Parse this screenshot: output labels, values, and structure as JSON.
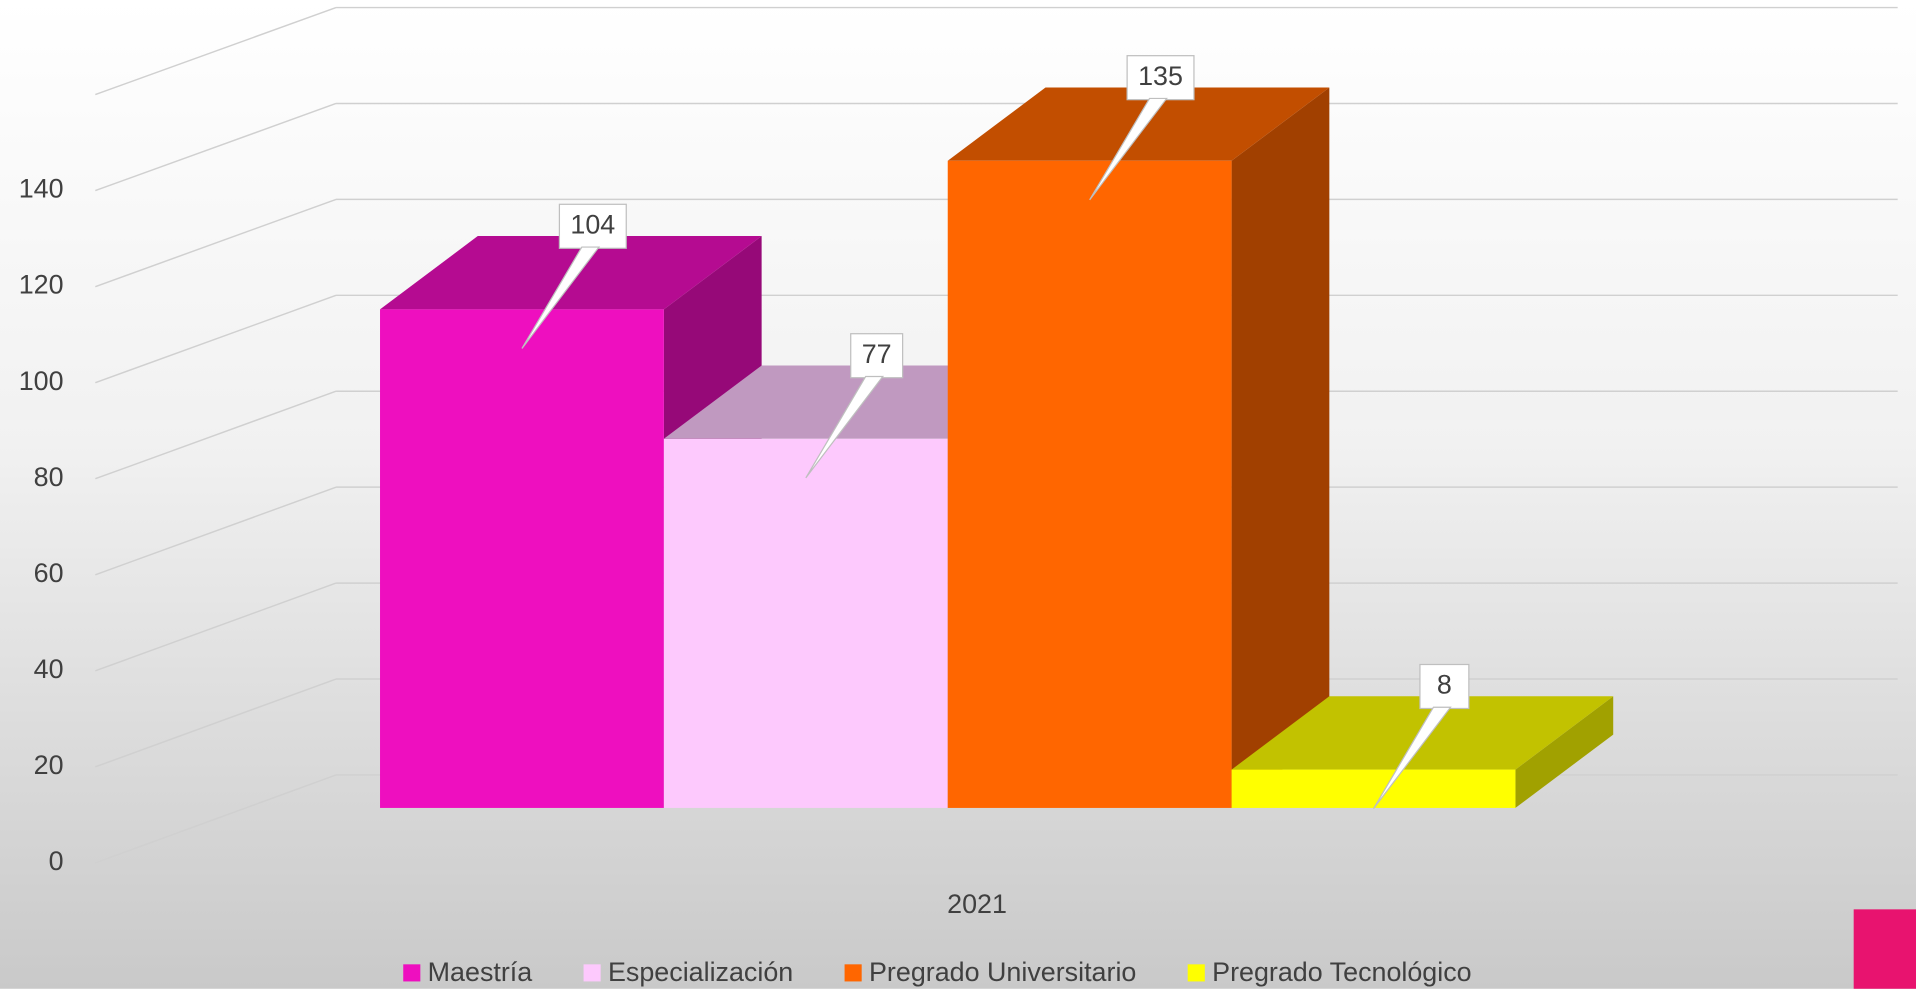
{
  "chart_data": {
    "type": "bar3d",
    "categories": [
      "2021"
    ],
    "series": [
      {
        "name": "Maestría",
        "color": "#ee0fbf",
        "values": [
          104
        ]
      },
      {
        "name": "Especialización",
        "color": "#fdc9fd",
        "values": [
          77
        ]
      },
      {
        "name": "Pregrado Universitario",
        "color": "#ff6600",
        "values": [
          135
        ]
      },
      {
        "name": "Pregrado Tecnológico",
        "color": "#ffff00",
        "values": [
          8
        ]
      }
    ],
    "ylim": [
      0,
      160
    ],
    "yticks": [
      0,
      20,
      40,
      60,
      80,
      100,
      120,
      140
    ],
    "grid": true,
    "legend": "bottom"
  }
}
